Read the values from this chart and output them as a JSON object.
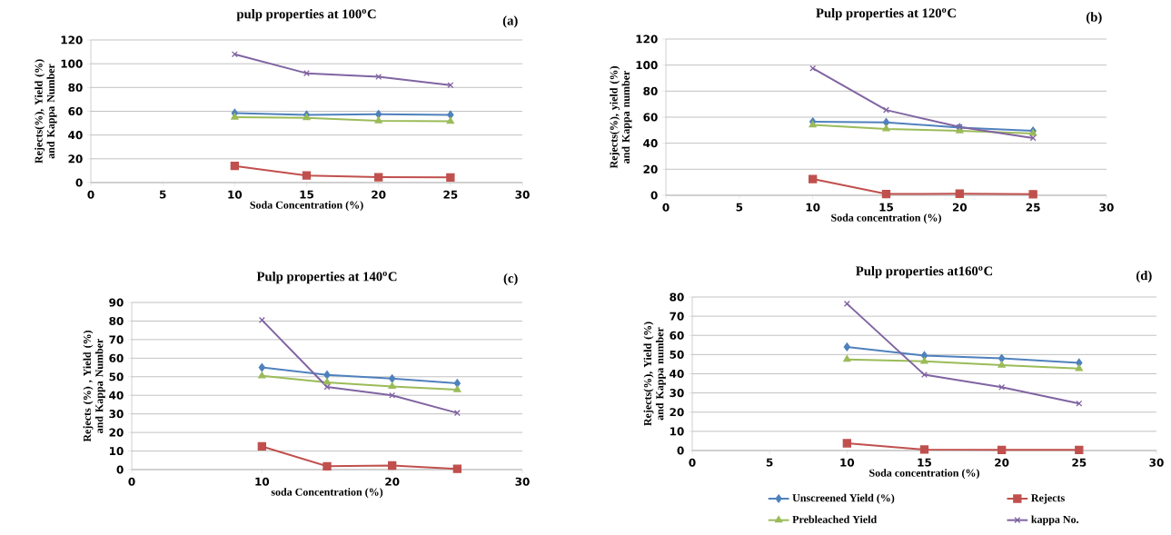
{
  "chart_data": [
    {
      "type": "line",
      "title": "pulp properties at 100$^{o}$C",
      "xlabel": "Soda Concentration (%)",
      "ylabel": "Rejects(%), Yield (%) and Kappa Number",
      "annotations": [
        "(a)"
      ],
      "x": [
        10,
        15,
        20,
        25
      ],
      "xlim": [
        0,
        30
      ],
      "xticks": [
        0,
        5,
        10,
        15,
        20,
        25,
        30
      ],
      "ylim": [
        0,
        120
      ],
      "yticks": [
        0,
        20,
        40,
        60,
        80,
        100,
        120
      ],
      "grid": "y",
      "line_style": "solid",
      "series": [
        {
          "color": "#4f81bd",
          "marker": "diamond",
          "values": [
            58.5,
            57,
            57.5,
            57
          ]
        },
        {
          "color": "#c0504d",
          "marker": "square",
          "values": [
            14,
            6,
            4.5,
            4.3
          ]
        },
        {
          "color": "#9bbb59",
          "marker": "triangle",
          "values": [
            55,
            54.5,
            52,
            51.5
          ]
        },
        {
          "color": "#8064a2",
          "marker": "cross",
          "values": [
            108,
            92,
            89,
            82
          ]
        }
      ]
    },
    {
      "type": "line",
      "title": "Pulp properties at 120$^{o}$C",
      "xlabel": "Soda concentration (%)",
      "ylabel": "Rejects(%), yield (%) and Kappa number",
      "annotations": [
        "(b)"
      ],
      "x": [
        10,
        15,
        20,
        25
      ],
      "xlim": [
        0,
        30
      ],
      "xticks": [
        0,
        5,
        10,
        15,
        20,
        25,
        30
      ],
      "ylim": [
        0,
        120
      ],
      "yticks": [
        0,
        20,
        40,
        60,
        80,
        100,
        120
      ],
      "grid": "y",
      "line_style": "solid",
      "series": [
        {
          "color": "#4f81bd",
          "marker": "diamond",
          "values": [
            56.5,
            56,
            52,
            49.5
          ]
        },
        {
          "color": "#c0504d",
          "marker": "square",
          "values": [
            12.5,
            1,
            1.2,
            0.8
          ]
        },
        {
          "color": "#9bbb59",
          "marker": "triangle",
          "values": [
            54,
            51,
            49.5,
            47.5
          ]
        },
        {
          "color": "#8064a2",
          "marker": "cross",
          "values": [
            97.5,
            65.5,
            52.5,
            44
          ]
        }
      ]
    },
    {
      "type": "line",
      "title": "Pulp properties at 140$^{o}$C",
      "xlabel": "soda Concentration (%)",
      "ylabel": "Rejects (%) , Yield (%) and Kappa Number",
      "annotations": [
        "(c)"
      ],
      "x": [
        10,
        15,
        20,
        25
      ],
      "xlim": [
        0,
        30
      ],
      "xticks": [
        0,
        10,
        20,
        30
      ],
      "ylim": [
        0,
        90
      ],
      "yticks": [
        0,
        10,
        20,
        30,
        40,
        50,
        60,
        70,
        80,
        90
      ],
      "grid": "y",
      "line_style": "solid",
      "series": [
        {
          "color": "#4f81bd",
          "marker": "diamond",
          "values": [
            55,
            51,
            49,
            46.5
          ]
        },
        {
          "color": "#c0504d",
          "marker": "square",
          "values": [
            12.5,
            1.8,
            2.2,
            0.4
          ]
        },
        {
          "color": "#9bbb59",
          "marker": "triangle",
          "values": [
            50.5,
            47,
            44.8,
            43
          ]
        },
        {
          "color": "#8064a2",
          "marker": "cross",
          "values": [
            80.5,
            44.5,
            40,
            30.5
          ]
        }
      ]
    },
    {
      "type": "line",
      "title": "Pulp properties at160$^{o}$C",
      "xlabel": "Soda concentration (%)",
      "ylabel": "Rejects(%), Yield (%) and Kappa number",
      "annotations": [
        "(d)"
      ],
      "x": [
        10,
        15,
        20,
        25
      ],
      "xlim": [
        0,
        30
      ],
      "xticks": [
        0,
        5,
        10,
        15,
        20,
        25,
        30
      ],
      "ylim": [
        0,
        80
      ],
      "yticks": [
        0,
        10,
        20,
        30,
        40,
        50,
        60,
        70,
        80
      ],
      "grid": "y",
      "line_style": "solid",
      "legend": "bottom",
      "series": [
        {
          "name": "Unscreened Yield (%)",
          "color": "#4f81bd",
          "marker": "diamond",
          "values": [
            54,
            49.5,
            48,
            45.7
          ]
        },
        {
          "name": "Rejects",
          "color": "#c0504d",
          "marker": "square",
          "values": [
            3.8,
            0.5,
            0.3,
            0.3
          ]
        },
        {
          "name": "Prebleached Yield",
          "color": "#9bbb59",
          "marker": "triangle",
          "values": [
            47.5,
            46.5,
            44.5,
            42.7
          ]
        },
        {
          "name": "kappa No.",
          "color": "#8064a2",
          "marker": "cross",
          "values": [
            76.5,
            39.5,
            33,
            24.5
          ]
        }
      ]
    }
  ]
}
